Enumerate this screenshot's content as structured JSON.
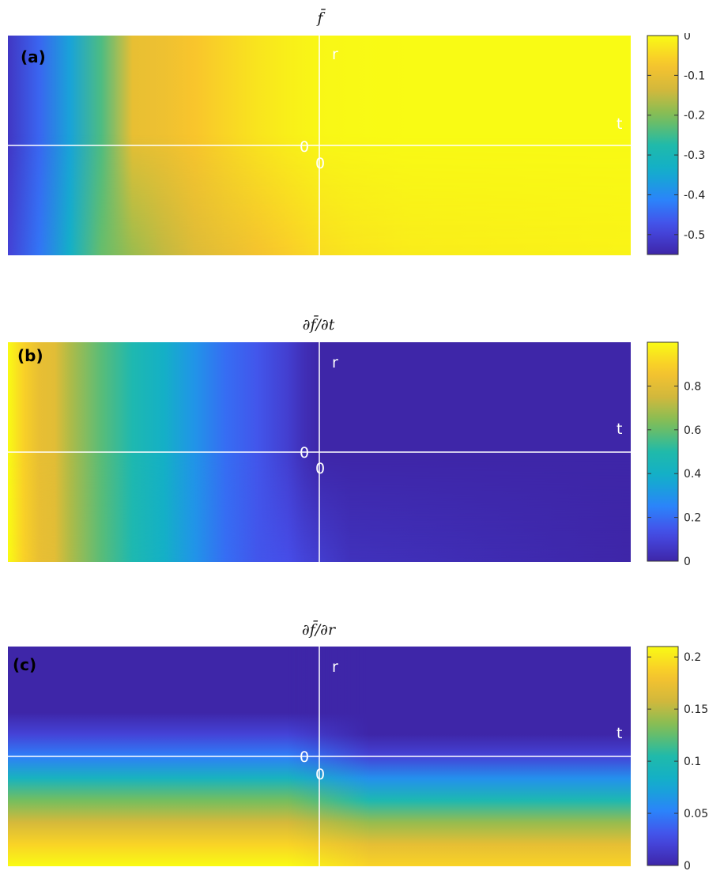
{
  "chart_data": [
    {
      "type": "heatmap",
      "title": "f̄",
      "panel_label": "(a)",
      "axis_labels": {
        "r": "r",
        "t": "t",
        "origin_x": "0",
        "origin_y": "0"
      },
      "colormap": "parula",
      "clim": [
        -0.55,
        0
      ],
      "colorbar_ticks": [
        0,
        -0.1,
        -0.2,
        -0.3,
        -0.4,
        -0.5
      ],
      "colorbar_tick_labels": [
        "0",
        "-0.1",
        "-0.2",
        "-0.3",
        "-0.4",
        "-0.5"
      ],
      "field_x": [
        -1.0,
        -0.9,
        -0.8,
        -0.7,
        -0.6,
        -0.5,
        -0.4,
        -0.3,
        -0.2,
        -0.1,
        0.0,
        0.1,
        0.3,
        0.6,
        1.0
      ],
      "field_r_top": [
        -0.52,
        -0.45,
        -0.36,
        -0.24,
        -0.1,
        -0.09,
        -0.07,
        -0.05,
        -0.03,
        -0.015,
        -0.005,
        -0.002,
        0,
        0,
        0
      ],
      "field_r_bottom": [
        -0.5,
        -0.43,
        -0.33,
        -0.22,
        -0.18,
        -0.15,
        -0.12,
        -0.1,
        -0.08,
        -0.06,
        -0.04,
        -0.03,
        -0.02,
        -0.015,
        -0.01
      ]
    },
    {
      "type": "heatmap",
      "title": "∂f̄/∂t",
      "panel_label": "(b)",
      "axis_labels": {
        "r": "r",
        "t": "t",
        "origin_x": "0",
        "origin_y": "0"
      },
      "colormap": "parula",
      "clim": [
        0,
        1
      ],
      "colorbar_ticks": [
        0,
        0.2,
        0.4,
        0.6,
        0.8
      ],
      "colorbar_tick_labels": [
        "0",
        "0.2",
        "0.4",
        "0.6",
        "0.8"
      ],
      "field_x": [
        -1.0,
        -0.95,
        -0.9,
        -0.85,
        -0.8,
        -0.7,
        -0.6,
        -0.5,
        -0.4,
        -0.3,
        -0.2,
        -0.1,
        -0.05,
        0.0,
        0.1,
        1.0
      ],
      "field_r_top": [
        1.0,
        0.9,
        0.82,
        0.8,
        0.7,
        0.58,
        0.48,
        0.4,
        0.3,
        0.2,
        0.15,
        0.08,
        0.03,
        0.0,
        0.0,
        0.0
      ],
      "field_r_bottom": [
        1.0,
        0.9,
        0.82,
        0.8,
        0.7,
        0.58,
        0.48,
        0.4,
        0.3,
        0.2,
        0.15,
        0.13,
        0.1,
        0.08,
        0.04,
        0.0
      ]
    },
    {
      "type": "heatmap",
      "title": "∂f̄/∂r",
      "panel_label": "(c)",
      "axis_labels": {
        "r": "r",
        "t": "t",
        "origin_x": "0",
        "origin_y": "0"
      },
      "colormap": "parula",
      "clim": [
        0,
        0.21
      ],
      "colorbar_ticks": [
        0.2,
        0.15,
        0.1,
        0.05,
        0
      ],
      "colorbar_tick_labels": [
        "0.2",
        "0.15",
        "0.1",
        "0.05",
        "0"
      ],
      "field_r_levels": [
        1.0,
        0.9,
        0.8,
        0.7,
        0.6,
        0.5,
        0.4,
        0.3,
        0.2,
        0.1,
        0.0
      ],
      "field_values_left": [
        0,
        0,
        0,
        0,
        0.02,
        0.05,
        0.09,
        0.13,
        0.16,
        0.19,
        0.21
      ],
      "field_values_right": [
        0,
        0,
        0,
        0,
        0,
        0.02,
        0.06,
        0.1,
        0.14,
        0.17,
        0.19
      ]
    }
  ]
}
